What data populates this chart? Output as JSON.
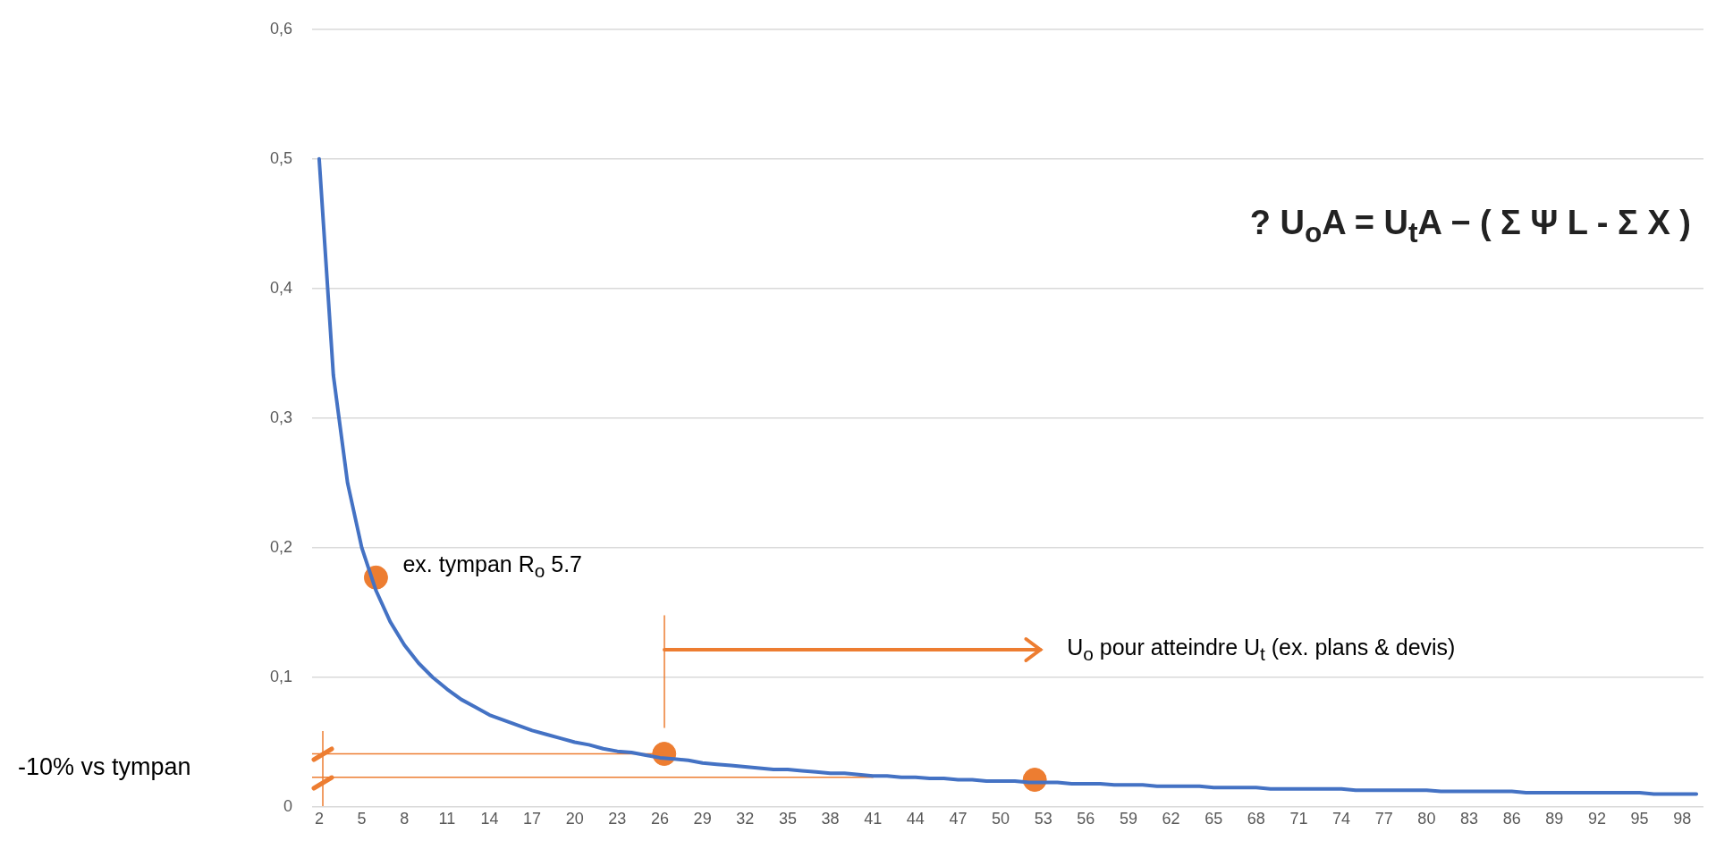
{
  "chart_data": {
    "type": "line",
    "x": [
      2,
      3,
      4,
      5,
      6,
      7,
      8,
      9,
      10,
      11,
      12,
      13,
      14,
      15,
      16,
      17,
      18,
      19,
      20,
      21,
      22,
      23,
      24,
      25,
      26,
      27,
      28,
      29,
      30,
      31,
      32,
      33,
      34,
      35,
      36,
      37,
      38,
      39,
      40,
      41,
      42,
      43,
      44,
      45,
      46,
      47,
      48,
      49,
      50,
      51,
      52,
      53,
      54,
      55,
      56,
      57,
      58,
      59,
      60,
      61,
      62,
      63,
      64,
      65,
      66,
      67,
      68,
      69,
      70,
      71,
      72,
      73,
      74,
      75,
      76,
      77,
      78,
      79,
      80,
      81,
      82,
      83,
      84,
      85,
      86,
      87,
      88,
      89,
      90,
      91,
      92,
      93,
      94,
      95,
      96,
      97,
      98,
      99
    ],
    "series": [
      {
        "color": "#4472c4",
        "values": [
          0.5,
          0.333,
          0.25,
          0.2,
          0.167,
          0.143,
          0.125,
          0.111,
          0.1,
          0.091,
          0.083,
          0.077,
          0.071,
          0.067,
          0.063,
          0.059,
          0.056,
          0.053,
          0.05,
          0.048,
          0.045,
          0.043,
          0.042,
          0.04,
          0.038,
          0.037,
          0.036,
          0.034,
          0.033,
          0.032,
          0.031,
          0.03,
          0.029,
          0.029,
          0.028,
          0.027,
          0.026,
          0.026,
          0.025,
          0.024,
          0.024,
          0.023,
          0.023,
          0.022,
          0.022,
          0.021,
          0.021,
          0.02,
          0.02,
          0.02,
          0.019,
          0.019,
          0.019,
          0.018,
          0.018,
          0.018,
          0.017,
          0.017,
          0.017,
          0.016,
          0.016,
          0.016,
          0.016,
          0.015,
          0.015,
          0.015,
          0.015,
          0.014,
          0.014,
          0.014,
          0.014,
          0.014,
          0.014,
          0.013,
          0.013,
          0.013,
          0.013,
          0.013,
          0.013,
          0.012,
          0.012,
          0.012,
          0.012,
          0.012,
          0.012,
          0.011,
          0.011,
          0.011,
          0.011,
          0.011,
          0.011,
          0.011,
          0.011,
          0.011,
          0.01,
          0.01,
          0.01,
          0.01
        ]
      },
      {
        "color": "#ed7d31",
        "x": [
          1.5,
          26.3
        ],
        "values": [
          0.041,
          0.041
        ]
      },
      {
        "color": "#ed7d31",
        "x": [
          1.5,
          41
        ],
        "values": [
          0.023,
          0.023
        ]
      },
      {
        "type": "scatter",
        "color": "#ed7d31",
        "marker": "circle",
        "x": [
          6,
          26.3,
          52.4
        ],
        "values": [
          0.177,
          0.041,
          0.021
        ]
      }
    ],
    "annotations": [
      {
        "text": "ex. tympan R$_{o}$ 5.7",
        "x": 6,
        "y": 0.177
      },
      "U$_{o}$ pour atteindre U$_{t}$ (ex. plans & devis)",
      "-10% vs tympan",
      "? U$_{o}$A = U$_{t}$A − ( Σ Ψ L - Σ X )"
    ],
    "xlim": [
      1.5,
      99.5
    ],
    "xticks": [
      2,
      5,
      8,
      11,
      14,
      17,
      20,
      23,
      26,
      29,
      32,
      35,
      38,
      41,
      44,
      47,
      50,
      53,
      56,
      59,
      62,
      65,
      68,
      71,
      74,
      77,
      80,
      83,
      86,
      89,
      92,
      95,
      98
    ],
    "ylim": [
      0,
      0.6
    ],
    "yticks": [
      0,
      {
        "value": 0.1,
        "label": "0,1"
      },
      {
        "value": 0.2,
        "label": "0,2"
      },
      {
        "value": 0.3,
        "label": "0,3"
      },
      {
        "value": 0.4,
        "label": "0,4"
      },
      {
        "value": 0.5,
        "label": "0,5"
      },
      {
        "value": 0.6,
        "label": "0,6"
      }
    ],
    "grid": "y",
    "line_style": "solid"
  }
}
